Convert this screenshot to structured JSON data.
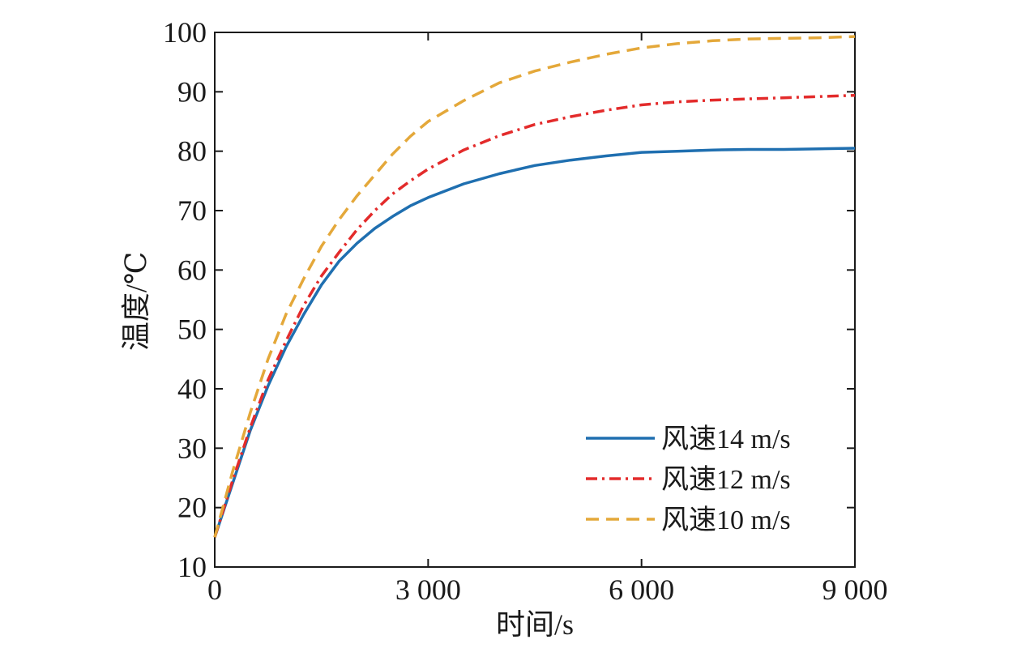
{
  "chart_data": {
    "type": "line",
    "xlabel": "时间/s",
    "ylabel": "温度/℃",
    "xlim": [
      0,
      9000
    ],
    "ylim": [
      10,
      100
    ],
    "xticks": [
      0,
      3000,
      6000,
      9000
    ],
    "xtick_labels": [
      "0",
      "3 000",
      "6 000",
      "9 000"
    ],
    "yticks": [
      10,
      20,
      30,
      40,
      50,
      60,
      70,
      80,
      90,
      100
    ],
    "ytick_labels": [
      "10",
      "20",
      "30",
      "40",
      "50",
      "60",
      "70",
      "80",
      "90",
      "100"
    ],
    "grid": false,
    "legend_position": "bottom-right",
    "series": [
      {
        "name": "风速14 m/s",
        "color": "#1f6fb0",
        "dash": "solid",
        "x": [
          0,
          250,
          500,
          750,
          1000,
          1250,
          1500,
          1750,
          2000,
          2250,
          2500,
          2750,
          3000,
          3500,
          4000,
          4500,
          5000,
          5500,
          6000,
          6500,
          7000,
          7500,
          8000,
          8500,
          9000
        ],
        "y": [
          15,
          24,
          33,
          40.5,
          47,
          52.5,
          57.5,
          61.5,
          64.5,
          67,
          69,
          70.8,
          72.2,
          74.5,
          76.2,
          77.6,
          78.5,
          79.2,
          79.8,
          80.0,
          80.2,
          80.3,
          80.3,
          80.4,
          80.5
        ]
      },
      {
        "name": "风速12 m/s",
        "color": "#e32b2b",
        "dash": "dashdot",
        "x": [
          0,
          250,
          500,
          750,
          1000,
          1250,
          1500,
          1750,
          2000,
          2250,
          2500,
          2750,
          3000,
          3500,
          4000,
          4500,
          5000,
          5500,
          6000,
          6500,
          7000,
          7500,
          8000,
          8500,
          9000
        ],
        "y": [
          15,
          24.5,
          33.5,
          41.5,
          48,
          54,
          59,
          63,
          66.8,
          70,
          72.8,
          75,
          77,
          80.2,
          82.6,
          84.5,
          85.8,
          86.9,
          87.8,
          88.3,
          88.6,
          88.8,
          89.0,
          89.2,
          89.4
        ]
      },
      {
        "name": "风速10 m/s",
        "color": "#e4a83a",
        "dash": "dashed",
        "x": [
          0,
          250,
          500,
          750,
          1000,
          1250,
          1500,
          1750,
          2000,
          2250,
          2500,
          2750,
          3000,
          3500,
          4000,
          4500,
          5000,
          5500,
          6000,
          6500,
          7000,
          7500,
          8000,
          8500,
          9000
        ],
        "y": [
          15,
          26,
          36,
          45,
          52.5,
          58.5,
          64,
          68.5,
          72.5,
          76,
          79.5,
          82.5,
          85,
          88.5,
          91.5,
          93.5,
          95,
          96.3,
          97.4,
          98.1,
          98.6,
          98.9,
          99.0,
          99.1,
          99.3
        ]
      }
    ]
  }
}
